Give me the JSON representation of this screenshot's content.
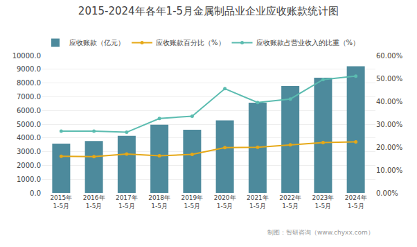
{
  "chart_data": {
    "type": "bar",
    "title": "2015-2024年各年1-5月金属制品业企业应收账款统计图",
    "categories": [
      "2015年\n1-5月",
      "2016年\n1-5月",
      "2017年\n1-5月",
      "2018年\n1-5月",
      "2019年\n1-5月",
      "2020年\n1-5月",
      "2021年\n1-5月",
      "2022年\n1-5月",
      "2023年\n1-5月",
      "2024年\n1-5月"
    ],
    "series": [
      {
        "name": "应收账款（亿元）",
        "type": "bar",
        "color": "#4d8a9c",
        "values": [
          3580,
          3780,
          4150,
          4960,
          4590,
          5280,
          6560,
          7780,
          8390,
          9220
        ]
      },
      {
        "name": "应收账款百分比（%）",
        "type": "line",
        "axis": "y2",
        "color": "#e6a817",
        "marker": "circle",
        "values": [
          16.0,
          15.8,
          17.0,
          16.2,
          16.8,
          19.8,
          19.9,
          21.0,
          22.0,
          22.3
        ]
      },
      {
        "name": "应收账款占营业收入的比重（%）",
        "type": "line",
        "axis": "y2",
        "color": "#5bbcb0",
        "marker": "circle",
        "values": [
          27.0,
          27.0,
          26.5,
          32.5,
          33.5,
          45.5,
          39.5,
          41.0,
          49.5,
          51.0
        ]
      }
    ],
    "ylim": [
      0,
      10000
    ],
    "yticks": [
      {
        "value": 0,
        "label": "0.0"
      },
      {
        "value": 1000,
        "label": "1000.0"
      },
      {
        "value": 2000,
        "label": "2000.0"
      },
      {
        "value": 3000,
        "label": "3000.0"
      },
      {
        "value": 4000,
        "label": "4000.0"
      },
      {
        "value": 5000,
        "label": "5000.0"
      },
      {
        "value": 6000,
        "label": "6000.0"
      },
      {
        "value": 7000,
        "label": "7000.0"
      },
      {
        "value": 8000,
        "label": "8000.0"
      },
      {
        "value": 9000,
        "label": "9000.0"
      },
      {
        "value": 10000,
        "label": "10000.0"
      }
    ],
    "y2lim": [
      0,
      60
    ],
    "y2ticks": [
      {
        "value": 0,
        "label": "0.00%"
      },
      {
        "value": 10,
        "label": "10.00%"
      },
      {
        "value": 20,
        "label": "20.00%"
      },
      {
        "value": 30,
        "label": "30.00%"
      },
      {
        "value": 40,
        "label": "40.00%"
      },
      {
        "value": 50,
        "label": "50.00%"
      },
      {
        "value": 60,
        "label": "60.00%"
      }
    ],
    "grid": true,
    "legend": "top",
    "annotations": [
      "制图：智研咨询（www.chyxx.com）"
    ]
  }
}
